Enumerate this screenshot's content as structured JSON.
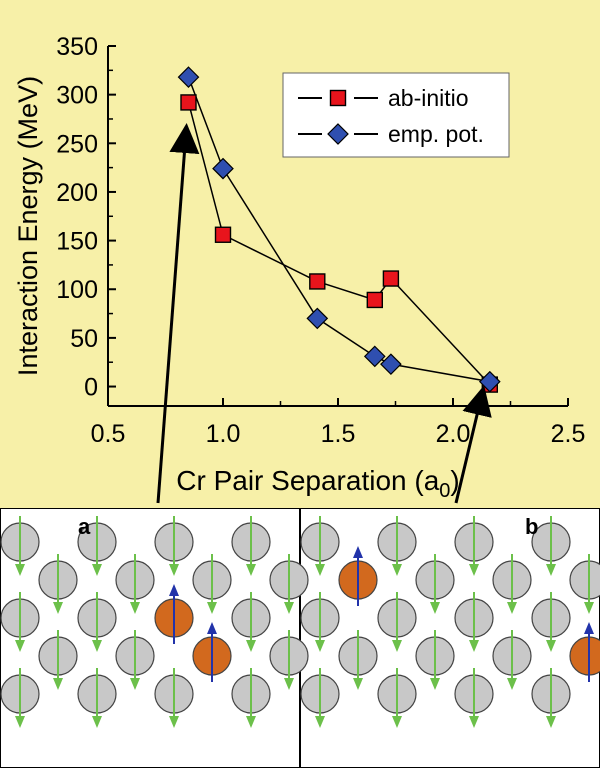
{
  "chart_data": {
    "type": "line",
    "xlabel_main": "Cr Pair Separation (a",
    "xlabel_sub": "0",
    "xlabel_close": ")",
    "ylabel": "Interaction Energy (MeV)",
    "xlim": [
      0.5,
      2.5
    ],
    "ylim": [
      -20,
      350
    ],
    "xticks": [
      "0.5",
      "1.0",
      "1.5",
      "2.0",
      "2.5"
    ],
    "yticks": [
      "0",
      "50",
      "100",
      "150",
      "200",
      "250",
      "300",
      "350"
    ],
    "grid": false,
    "legend_position": "top-right",
    "series": [
      {
        "name": "ab-initio",
        "marker": "square",
        "color": "#e8141c",
        "x": [
          0.85,
          1.0,
          1.41,
          1.66,
          1.73,
          2.16
        ],
        "y": [
          292,
          156,
          108,
          89,
          111,
          2
        ]
      },
      {
        "name": "emp. pot.",
        "marker": "diamond",
        "color": "#2f4fb0",
        "x": [
          0.85,
          1.0,
          1.41,
          1.66,
          1.73,
          2.16
        ],
        "y": [
          318,
          224,
          70,
          31,
          23,
          5
        ]
      }
    ]
  },
  "panels": {
    "a": {
      "label": "a"
    },
    "b": {
      "label": "b"
    }
  },
  "colors": {
    "chart_background": "#f7f0a8",
    "atom_fe": "#c8c8c8",
    "atom_cr": "#d2691e",
    "spin_down": "#6cc04a",
    "spin_up": "#2233aa"
  }
}
